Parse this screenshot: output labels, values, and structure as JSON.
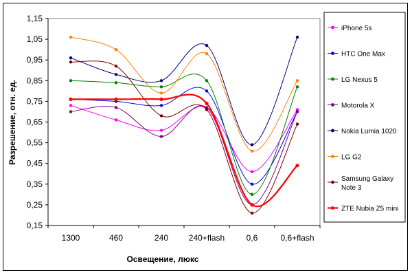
{
  "chart_data": {
    "type": "line",
    "title": "",
    "xlabel": "Освещение, люкс",
    "ylabel": "Разрешение, отн. ед.",
    "categories": [
      "1300",
      "460",
      "240",
      "240+flash",
      "0,6",
      "0,6+flash"
    ],
    "ylim": [
      0.15,
      1.15
    ],
    "yticks": [
      "0,15",
      "0,25",
      "0,35",
      "0,45",
      "0,55",
      "0,65",
      "0,75",
      "0,85",
      "0,95",
      "1,05",
      "1,15"
    ],
    "series": [
      {
        "name": "iPhone 5s",
        "color": "#ff00ff",
        "values": [
          0.73,
          0.66,
          0.61,
          0.72,
          0.41,
          0.71
        ],
        "bold": false
      },
      {
        "name": "HTC One Max",
        "color": "#0000ff",
        "values": [
          0.76,
          0.75,
          0.73,
          0.8,
          0.35,
          0.7
        ],
        "bold": false
      },
      {
        "name": "LG Nexus 5",
        "color": "#008000",
        "values": [
          0.85,
          0.84,
          0.82,
          0.85,
          0.3,
          0.82
        ],
        "bold": false
      },
      {
        "name": "Motorola X",
        "color": "#800080",
        "values": [
          0.7,
          0.72,
          0.58,
          0.72,
          0.25,
          0.7
        ],
        "bold": false
      },
      {
        "name": "Nokia Lumia 1020",
        "color": "#000080",
        "values": [
          0.96,
          0.88,
          0.85,
          1.02,
          0.54,
          1.06
        ],
        "bold": false
      },
      {
        "name": "LG G2",
        "color": "#ff8000",
        "values": [
          1.06,
          1.0,
          0.79,
          0.98,
          0.51,
          0.85
        ],
        "bold": false
      },
      {
        "name": "Samsung Galaxy Note 3",
        "legend_lines": [
          "Samsung Galaxy",
          "Note 3"
        ],
        "color": "#800000",
        "values": [
          0.94,
          0.92,
          0.68,
          0.71,
          0.21,
          0.64
        ],
        "bold": false
      },
      {
        "name": "ZTE Nubia Z5 mini",
        "color": "#ff0000",
        "values": [
          0.76,
          0.76,
          0.76,
          0.74,
          0.25,
          0.44
        ],
        "bold": true
      }
    ]
  }
}
